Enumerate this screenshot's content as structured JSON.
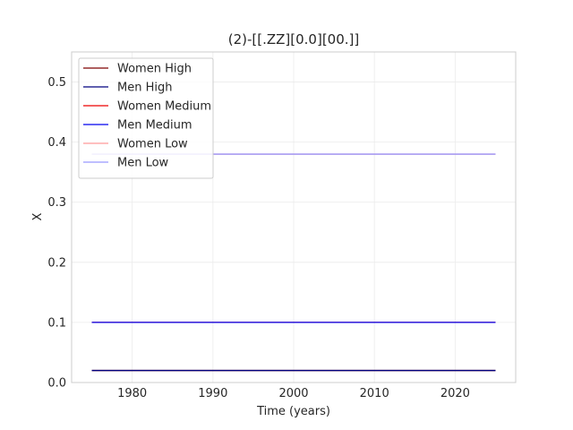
{
  "chart_data": {
    "type": "line",
    "title": "(2)-[[.ZZ][0.0][00.]]",
    "xlabel": "Time (years)",
    "ylabel": "X",
    "xlim": [
      1972.5,
      2027.5
    ],
    "ylim": [
      0.0,
      0.55
    ],
    "xticks": [
      1980,
      1990,
      2000,
      2010,
      2020
    ],
    "yticks": [
      0.0,
      0.1,
      0.2,
      0.3,
      0.4,
      0.5
    ],
    "xtick_labels": [
      "1980",
      "1990",
      "2000",
      "2010",
      "2020"
    ],
    "ytick_labels": [
      "0.0",
      "0.1",
      "0.2",
      "0.3",
      "0.4",
      "0.5"
    ],
    "grid": true,
    "legend_position": "top-left",
    "series": [
      {
        "name": "Women High",
        "color": "#7f0000",
        "x": [
          1975,
          2025
        ],
        "y": [
          0.02,
          0.02
        ]
      },
      {
        "name": "Men High",
        "color": "#00007f",
        "x": [
          1975,
          2025
        ],
        "y": [
          0.02,
          0.02
        ]
      },
      {
        "name": "Women Medium",
        "color": "#ee0000",
        "x": [
          1975,
          2025
        ],
        "y": [
          0.1,
          0.1
        ]
      },
      {
        "name": "Men Medium",
        "color": "#0000ee",
        "x": [
          1975,
          2025
        ],
        "y": [
          0.1,
          0.1
        ]
      },
      {
        "name": "Women Low",
        "color": "#ff9999",
        "x": [
          1975,
          2025
        ],
        "y": [
          0.38,
          0.38
        ]
      },
      {
        "name": "Men Low",
        "color": "#9999ff",
        "x": [
          1975,
          2025
        ],
        "y": [
          0.38,
          0.38
        ]
      }
    ]
  }
}
